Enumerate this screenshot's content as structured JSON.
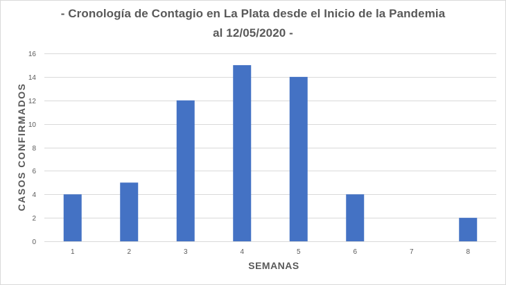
{
  "chart_data": {
    "type": "bar",
    "title_line1": "- Cronología  de Contagio  en La Plata desde el Inicio de la Pandemia",
    "title_line2": "al 12/05/2020 -",
    "xlabel": "SEMANAS",
    "ylabel": "CASOS  CONFIRMADOS",
    "categories": [
      "1",
      "2",
      "3",
      "4",
      "5",
      "6",
      "7",
      "8"
    ],
    "values": [
      4,
      5,
      12,
      15,
      14,
      4,
      0,
      2
    ],
    "ylim": [
      0,
      16
    ],
    "yticks": [
      0,
      2,
      4,
      6,
      8,
      10,
      12,
      14,
      16
    ],
    "grid": true,
    "legend": "none",
    "bar_color": "#4472c4",
    "grid_color": "#d9d9d9",
    "text_color": "#595959"
  }
}
